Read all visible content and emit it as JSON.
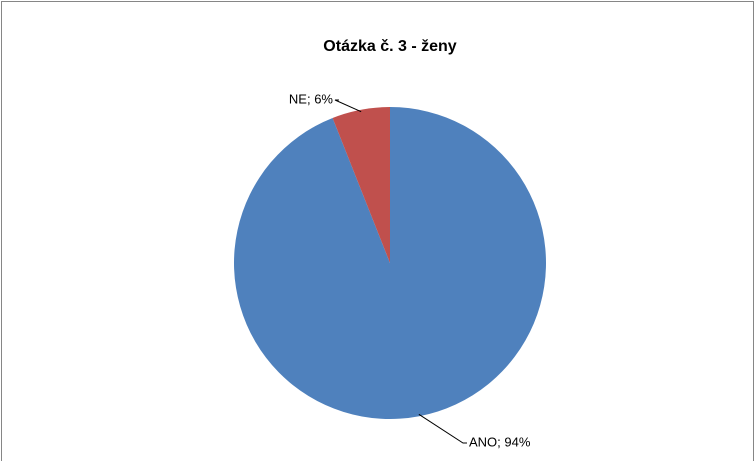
{
  "chart_data": {
    "type": "pie",
    "title": "Otázka č. 3 - ženy",
    "categories": [
      "ANO",
      "NE"
    ],
    "values": [
      94,
      6
    ],
    "value_labels": [
      "ANO; 94%",
      "NE; 6%"
    ],
    "colors": [
      "#4f81bd",
      "#c0504d"
    ]
  }
}
